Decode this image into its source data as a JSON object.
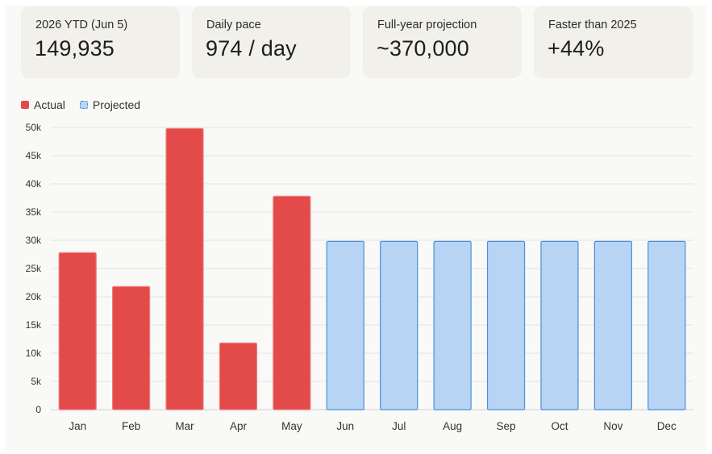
{
  "stats": [
    {
      "label": "2026 YTD (Jun 5)",
      "value": "149,935"
    },
    {
      "label": "Daily pace",
      "value": "974 / day"
    },
    {
      "label": "Full-year projection",
      "value": "~370,000"
    },
    {
      "label": "Faster than 2025",
      "value": "+44%"
    }
  ],
  "legend": [
    {
      "label": "Actual",
      "key": "actual"
    },
    {
      "label": "Projected",
      "key": "projected"
    }
  ],
  "colors": {
    "actual_fill": "#e34a4a",
    "actual_stroke": "#ee7b7b",
    "projected_fill": "#b8d4f4",
    "projected_stroke": "#4a8fd9",
    "grid": "#e4e4e4",
    "axis": "#cfcfcf"
  },
  "chart_data": {
    "type": "bar",
    "title": "",
    "xlabel": "",
    "ylabel": "",
    "categories": [
      "Jan",
      "Feb",
      "Mar",
      "Apr",
      "May",
      "Jun",
      "Jul",
      "Aug",
      "Sep",
      "Oct",
      "Nov",
      "Dec"
    ],
    "series": [
      {
        "name": "Actual",
        "values": [
          27800,
          21800,
          49800,
          11800,
          37800,
          null,
          null,
          null,
          null,
          null,
          null,
          null
        ]
      },
      {
        "name": "Projected",
        "values": [
          null,
          null,
          null,
          null,
          null,
          29800,
          29800,
          29800,
          29800,
          29800,
          29800,
          29800
        ]
      }
    ],
    "ylim": [
      0,
      50000
    ],
    "yticks": [
      0,
      5000,
      10000,
      15000,
      20000,
      25000,
      30000,
      35000,
      40000,
      45000,
      50000
    ],
    "ytick_labels": [
      "0",
      "5k",
      "10k",
      "15k",
      "20k",
      "25k",
      "30k",
      "35k",
      "40k",
      "45k",
      "50k"
    ],
    "grid": true,
    "legend_position": "top-left"
  }
}
